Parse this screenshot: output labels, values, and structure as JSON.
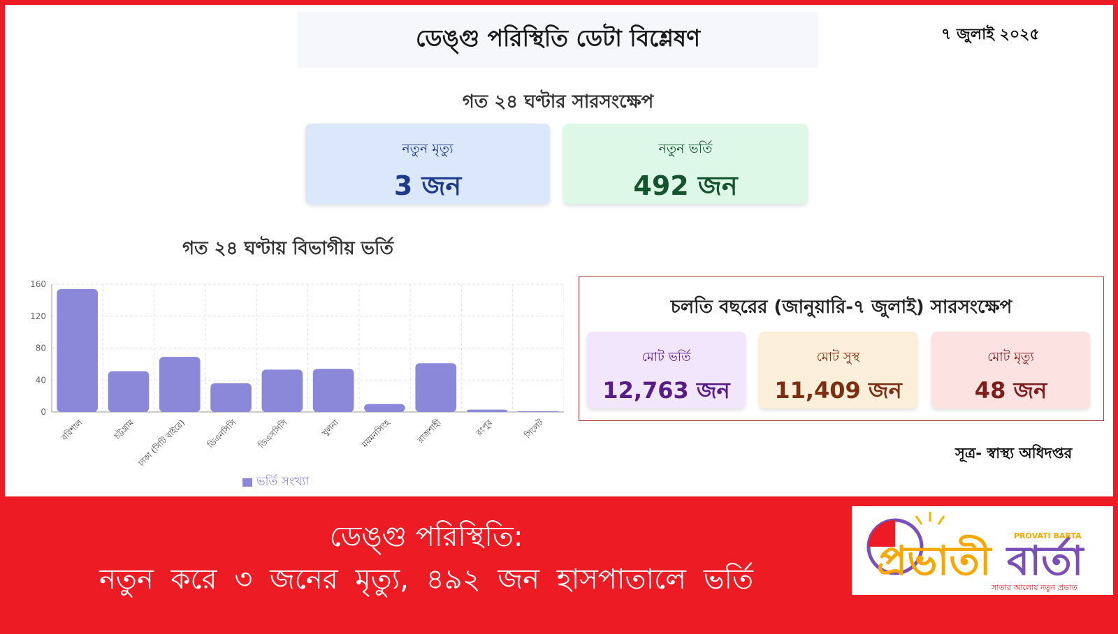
{
  "header": {
    "title": "ডেঙ্গু পরিস্থিতি ডেটা বিশ্লেষণ",
    "date": "৭ জুলাই ২০২৫"
  },
  "summary24h": {
    "heading": "গত ২৪ ঘণ্টার সারসংক্ষেপ",
    "deaths": {
      "label": "নতুন মৃত্যু",
      "value": "3 জন"
    },
    "admissions": {
      "label": "নতুন ভর্তি",
      "value": "492 জন"
    }
  },
  "chart_data": {
    "type": "bar",
    "title": "গত ২৪ ঘণ্টায় বিভাগীয় ভর্তি",
    "categories": [
      "বরিশাল",
      "চট্টগ্রাম",
      "ঢাকা (সিটি বাইরে)",
      "ডিএনসিসি",
      "ডিএসসিসি",
      "খুলনা",
      "ময়মনসিংহ",
      "রাজশাহী",
      "রংপুর",
      "সিলেট"
    ],
    "series": [
      {
        "name": "ভর্তি সংখ্যা",
        "values": [
          154,
          51,
          69,
          36,
          53,
          54,
          10,
          61,
          3,
          1
        ]
      }
    ],
    "yticks": [
      "0",
      "40",
      "80",
      "120",
      "160"
    ],
    "ylim": [
      0,
      160
    ],
    "grid": true,
    "legend": "bottom",
    "color": "#8b87d9"
  },
  "yearSummary": {
    "heading": "চলতি বছরের (জানুয়ারি-৭ জুলাই) সারসংক্ষেপ",
    "totalAdmitted": {
      "label": "মোট ভর্তি",
      "value": "12,763 জন"
    },
    "totalRecovered": {
      "label": "মোট সুস্থ",
      "value": "11,409 জন"
    },
    "totalDeaths": {
      "label": "মোট মৃত্যু",
      "value": "48 জন"
    }
  },
  "source": "সূত্র- স্বাস্থ্য অধিদপ্তর",
  "banner": {
    "line1": "ডেঙ্গু পরিস্থিতি:",
    "line2": "নতুন করে ৩ জনের মৃত্যু, ৪৯২ জন হাসপাতালে ভর্তি"
  },
  "logo": {
    "name": "প্রভাতী বার্তা",
    "latin": "PROVATI BARTA",
    "tagline": "সাতার আলোয় নতুন প্রভাত"
  }
}
